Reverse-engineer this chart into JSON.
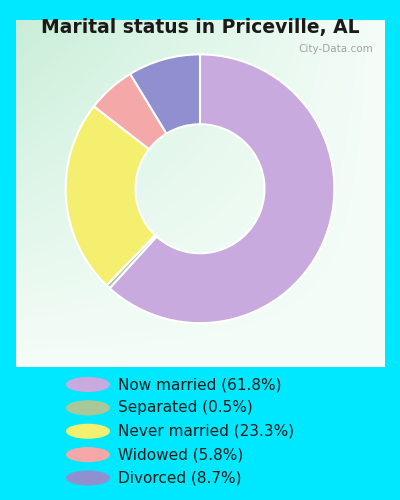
{
  "title": "Marital status in Priceville, AL",
  "slices": [
    61.8,
    0.5,
    23.3,
    5.8,
    8.7
  ],
  "labels": [
    "Now married (61.8%)",
    "Separated (0.5%)",
    "Never married (23.3%)",
    "Widowed (5.8%)",
    "Divorced (8.7%)"
  ],
  "colors": [
    "#c8aade",
    "#a8c89a",
    "#f5ef70",
    "#f5a8a8",
    "#9090d0"
  ],
  "bg_outer": "#00e8ff",
  "title_fontsize": 13.5,
  "legend_fontsize": 11,
  "watermark": "City-Data.com",
  "startangle": 90,
  "donut_width": 0.52
}
